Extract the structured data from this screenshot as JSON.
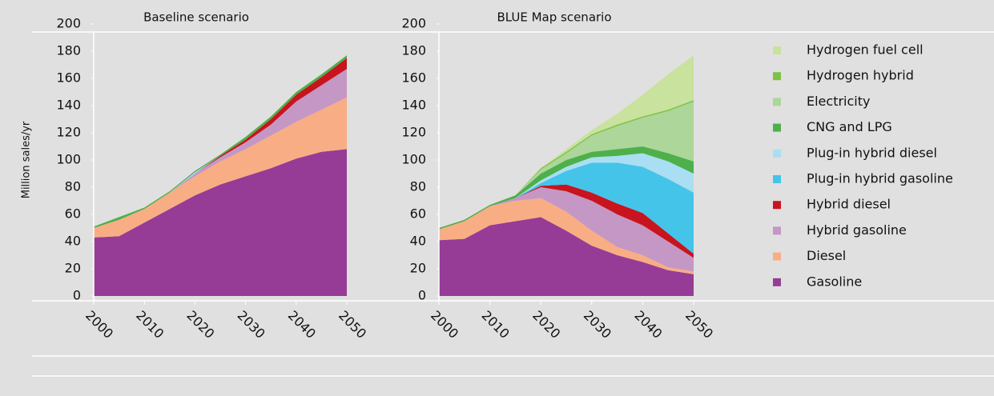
{
  "chart_data": [
    {
      "type": "stacked_area",
      "title": "Baseline scenario",
      "y_label": "Million sales/yr",
      "x": [
        2000,
        2005,
        2010,
        2015,
        2020,
        2025,
        2030,
        2035,
        2040,
        2045,
        2050
      ],
      "xlim": [
        2000,
        2050
      ],
      "xticks": [
        2000,
        2010,
        2020,
        2030,
        2040,
        2050
      ],
      "ylim": [
        0,
        200
      ],
      "yticks": [
        0,
        20,
        40,
        60,
        80,
        100,
        120,
        140,
        160,
        180,
        200
      ],
      "series": [
        {
          "name": "Gasoline",
          "color": "#963c96",
          "values": [
            43,
            44,
            54,
            64,
            74,
            82,
            88,
            94,
            101,
            106,
            108
          ]
        },
        {
          "name": "Diesel",
          "color": "#f9ad84",
          "values": [
            7,
            12,
            10,
            12,
            14,
            17,
            20,
            24,
            27,
            31,
            38
          ]
        },
        {
          "name": "Hybrid gasoline",
          "color": "#c597c4",
          "values": [
            0,
            0,
            0,
            0,
            2,
            3,
            5,
            8,
            15,
            18,
            21
          ]
        },
        {
          "name": "Hybrid diesel",
          "color": "#c8141e",
          "values": [
            0,
            0,
            0,
            0,
            0,
            1,
            2,
            4,
            5,
            6,
            8
          ]
        },
        {
          "name": "Plug-in hybrid gasoline",
          "color": "#44c4e8",
          "values": [
            0,
            0,
            0,
            0,
            0,
            0,
            0,
            0,
            0,
            0,
            0
          ]
        },
        {
          "name": "Plug-in hybrid diesel",
          "color": "#a9def3",
          "values": [
            0,
            0,
            0,
            0,
            1,
            0,
            0,
            0,
            0,
            0,
            0
          ]
        },
        {
          "name": "CNG and LPG",
          "color": "#4db04a",
          "values": [
            1,
            2,
            1,
            1,
            1,
            1,
            2,
            2,
            2,
            2,
            2
          ]
        },
        {
          "name": "Electricity",
          "color": "#acd69a",
          "values": [
            0,
            0,
            0,
            0,
            0,
            0,
            0,
            0,
            0,
            0,
            0
          ]
        },
        {
          "name": "Hydrogen hybrid",
          "color": "#7dc242",
          "values": [
            0,
            0,
            0,
            0,
            0,
            0,
            0,
            0,
            0,
            0,
            0
          ]
        },
        {
          "name": "Hydrogen fuel cell",
          "color": "#c9e29d",
          "values": [
            0,
            0,
            0,
            0,
            0,
            0,
            0,
            0,
            0,
            0,
            0
          ]
        }
      ]
    },
    {
      "type": "stacked_area",
      "title": "BLUE Map scenario",
      "x": [
        2000,
        2005,
        2010,
        2015,
        2020,
        2025,
        2030,
        2035,
        2040,
        2045,
        2050
      ],
      "xlim": [
        2000,
        2050
      ],
      "xticks": [
        2000,
        2010,
        2020,
        2030,
        2040,
        2050
      ],
      "ylim": [
        0,
        200
      ],
      "yticks": [
        0,
        20,
        40,
        60,
        80,
        100,
        120,
        140,
        160,
        180,
        200
      ],
      "legend": "right",
      "series": [
        {
          "name": "Gasoline",
          "color": "#963c96",
          "values": [
            41,
            42,
            52,
            55,
            58,
            48,
            37,
            30,
            25,
            19,
            16
          ]
        },
        {
          "name": "Diesel",
          "color": "#f9ad84",
          "values": [
            8,
            13,
            14,
            15,
            14,
            14,
            11,
            6,
            5,
            2,
            2
          ]
        },
        {
          "name": "Hybrid gasoline",
          "color": "#c597c4",
          "values": [
            0,
            0,
            0,
            2,
            8,
            15,
            22,
            24,
            22,
            19,
            10
          ]
        },
        {
          "name": "Hybrid diesel",
          "color": "#c8141e",
          "values": [
            0,
            0,
            0,
            0,
            1,
            5,
            6,
            8,
            9,
            6,
            3
          ]
        },
        {
          "name": "Plug-in hybrid gasoline",
          "color": "#44c4e8",
          "values": [
            0,
            0,
            0,
            0,
            2,
            10,
            22,
            30,
            34,
            40,
            45
          ]
        },
        {
          "name": "Plug-in hybrid diesel",
          "color": "#a9def3",
          "values": [
            0,
            0,
            0,
            0,
            2,
            3,
            4,
            5,
            10,
            13,
            14
          ]
        },
        {
          "name": "CNG and LPG",
          "color": "#4db04a",
          "values": [
            1,
            1,
            1,
            2,
            5,
            5,
            4,
            5,
            5,
            6,
            9
          ]
        },
        {
          "name": "Electricity",
          "color": "#acd69a",
          "values": [
            0,
            0,
            0,
            0,
            3,
            5,
            12,
            17,
            21,
            31,
            44
          ]
        },
        {
          "name": "Hydrogen hybrid",
          "color": "#7dc242",
          "values": [
            0,
            0,
            0,
            0,
            1,
            1,
            1,
            1,
            1,
            1,
            1
          ]
        },
        {
          "name": "Hydrogen fuel cell",
          "color": "#c9e29d",
          "values": [
            0,
            0,
            0,
            0,
            0,
            2,
            3,
            8,
            16,
            26,
            33
          ]
        }
      ]
    }
  ]
}
